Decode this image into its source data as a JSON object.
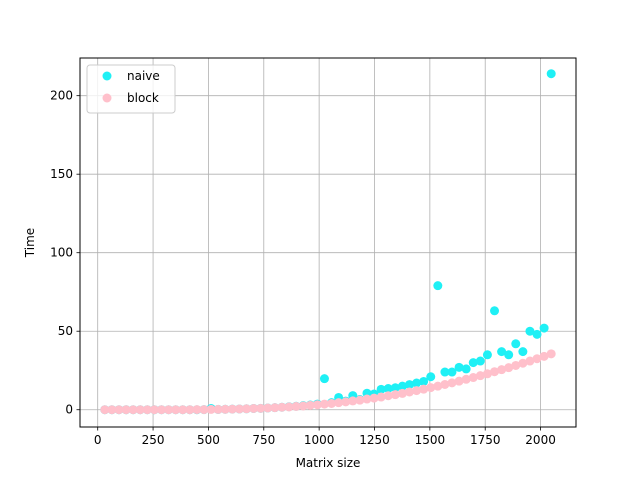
{
  "chart_data": {
    "type": "scatter",
    "title": "",
    "xlabel": "Matrix size",
    "ylabel": "Time",
    "xlim": [
      -80,
      2160
    ],
    "ylim": [
      -11,
      224
    ],
    "xticks": [
      0,
      250,
      500,
      750,
      1000,
      1250,
      1500,
      1750,
      2000
    ],
    "yticks": [
      0,
      50,
      100,
      150,
      200
    ],
    "grid": true,
    "legend_position": "top-left",
    "series": [
      {
        "name": "naive",
        "color": "#1ff0f5",
        "points": [
          [
            32,
            0.0
          ],
          [
            64,
            0.0
          ],
          [
            96,
            0.0
          ],
          [
            128,
            0.0
          ],
          [
            160,
            0.0
          ],
          [
            192,
            0.0
          ],
          [
            224,
            0.0
          ],
          [
            256,
            0.0
          ],
          [
            288,
            0.0
          ],
          [
            320,
            0.0
          ],
          [
            352,
            0.0
          ],
          [
            384,
            0.0
          ],
          [
            416,
            0.0
          ],
          [
            448,
            0.0
          ],
          [
            480,
            0.1
          ],
          [
            512,
            0.8
          ],
          [
            544,
            0.2
          ],
          [
            576,
            0.3
          ],
          [
            608,
            0.4
          ],
          [
            640,
            0.5
          ],
          [
            672,
            0.6
          ],
          [
            704,
            0.8
          ],
          [
            736,
            0.9
          ],
          [
            768,
            1.1
          ],
          [
            800,
            1.3
          ],
          [
            832,
            1.6
          ],
          [
            864,
            1.9
          ],
          [
            896,
            2.2
          ],
          [
            928,
            2.6
          ],
          [
            960,
            3.0
          ],
          [
            992,
            3.6
          ],
          [
            1024,
            19.8
          ],
          [
            1056,
            4.5
          ],
          [
            1088,
            7.8
          ],
          [
            1120,
            5.5
          ],
          [
            1152,
            9.0
          ],
          [
            1184,
            6.5
          ],
          [
            1216,
            10.5
          ],
          [
            1248,
            10.0
          ],
          [
            1280,
            13.0
          ],
          [
            1312,
            13.5
          ],
          [
            1344,
            14.0
          ],
          [
            1376,
            15.0
          ],
          [
            1408,
            16.0
          ],
          [
            1440,
            17.0
          ],
          [
            1472,
            18.0
          ],
          [
            1504,
            21.0
          ],
          [
            1536,
            79.0
          ],
          [
            1568,
            24.0
          ],
          [
            1600,
            24.0
          ],
          [
            1632,
            27.0
          ],
          [
            1664,
            26.0
          ],
          [
            1696,
            30.0
          ],
          [
            1728,
            31.0
          ],
          [
            1760,
            35.0
          ],
          [
            1792,
            63.0
          ],
          [
            1824,
            37.0
          ],
          [
            1856,
            35.0
          ],
          [
            1888,
            42.0
          ],
          [
            1920,
            37.0
          ],
          [
            1952,
            50.0
          ],
          [
            1984,
            48.0
          ],
          [
            2016,
            52.0
          ],
          [
            2048,
            214.0
          ]
        ]
      },
      {
        "name": "block",
        "color": "#ffc0cb",
        "points": [
          [
            32,
            0.0
          ],
          [
            64,
            0.0
          ],
          [
            96,
            0.0
          ],
          [
            128,
            0.0
          ],
          [
            160,
            0.0
          ],
          [
            192,
            0.0
          ],
          [
            224,
            0.0
          ],
          [
            256,
            0.0
          ],
          [
            288,
            0.0
          ],
          [
            320,
            0.0
          ],
          [
            352,
            0.0
          ],
          [
            384,
            0.0
          ],
          [
            416,
            0.0
          ],
          [
            448,
            0.1
          ],
          [
            480,
            0.1
          ],
          [
            512,
            0.2
          ],
          [
            544,
            0.2
          ],
          [
            576,
            0.3
          ],
          [
            608,
            0.4
          ],
          [
            640,
            0.5
          ],
          [
            672,
            0.6
          ],
          [
            704,
            0.8
          ],
          [
            736,
            0.9
          ],
          [
            768,
            1.1
          ],
          [
            800,
            1.3
          ],
          [
            832,
            1.6
          ],
          [
            864,
            1.8
          ],
          [
            896,
            2.1
          ],
          [
            928,
            2.4
          ],
          [
            960,
            2.8
          ],
          [
            992,
            3.2
          ],
          [
            1024,
            3.6
          ],
          [
            1056,
            4.0
          ],
          [
            1088,
            4.5
          ],
          [
            1120,
            5.0
          ],
          [
            1152,
            5.6
          ],
          [
            1184,
            6.1
          ],
          [
            1216,
            6.8
          ],
          [
            1248,
            7.4
          ],
          [
            1280,
            8.1
          ],
          [
            1312,
            8.9
          ],
          [
            1344,
            9.6
          ],
          [
            1376,
            10.4
          ],
          [
            1408,
            11.3
          ],
          [
            1440,
            12.2
          ],
          [
            1472,
            13.1
          ],
          [
            1504,
            14.1
          ],
          [
            1536,
            15.0
          ],
          [
            1568,
            16.1
          ],
          [
            1600,
            17.1
          ],
          [
            1632,
            18.2
          ],
          [
            1664,
            19.4
          ],
          [
            1696,
            20.5
          ],
          [
            1728,
            21.7
          ],
          [
            1760,
            22.9
          ],
          [
            1792,
            24.2
          ],
          [
            1824,
            25.5
          ],
          [
            1856,
            26.8
          ],
          [
            1888,
            28.2
          ],
          [
            1920,
            29.6
          ],
          [
            1952,
            31.0
          ],
          [
            1984,
            32.5
          ],
          [
            2016,
            34.0
          ],
          [
            2048,
            35.6
          ]
        ]
      }
    ]
  }
}
